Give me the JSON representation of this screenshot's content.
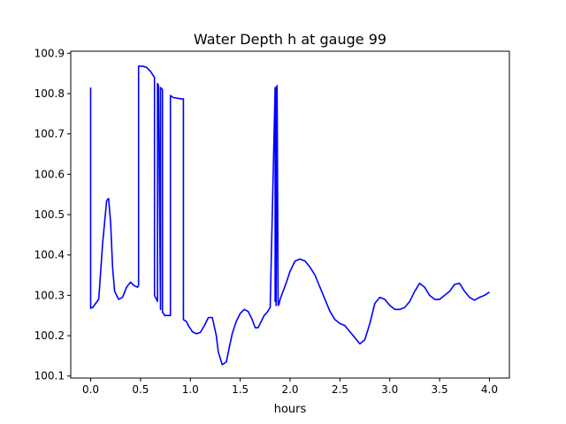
{
  "chart_data": {
    "type": "line",
    "title": "Water Depth h at gauge 99",
    "xlabel": "hours",
    "ylabel": "",
    "xlim": [
      -0.2,
      4.2
    ],
    "ylim": [
      100.095,
      100.905
    ],
    "xticks": [
      0.0,
      0.5,
      1.0,
      1.5,
      2.0,
      2.5,
      3.0,
      3.5,
      4.0
    ],
    "xtick_labels": [
      "0.0",
      "0.5",
      "1.0",
      "1.5",
      "2.0",
      "2.5",
      "3.0",
      "3.5",
      "4.0"
    ],
    "yticks": [
      100.1,
      100.2,
      100.3,
      100.4,
      100.5,
      100.6,
      100.7,
      100.8,
      100.9
    ],
    "ytick_labels": [
      "100.1",
      "100.2",
      "100.3",
      "100.4",
      "100.5",
      "100.6",
      "100.7",
      "100.8",
      "100.9"
    ],
    "grid": false,
    "legend": "none",
    "series": [
      {
        "color": "#0000ff",
        "x": [
          0.0,
          0.0,
          0.0,
          0.02,
          0.08,
          0.12,
          0.16,
          0.18,
          0.2,
          0.22,
          0.24,
          0.28,
          0.32,
          0.36,
          0.4,
          0.43,
          0.47,
          0.48,
          0.48,
          0.52,
          0.56,
          0.6,
          0.64,
          0.64,
          0.67,
          0.67,
          0.68,
          0.7,
          0.7,
          0.72,
          0.72,
          0.74,
          0.74,
          0.8,
          0.8,
          0.83,
          0.91,
          0.93,
          0.93,
          0.96,
          0.98,
          1.02,
          1.06,
          1.1,
          1.14,
          1.18,
          1.22,
          1.26,
          1.28,
          1.32,
          1.36,
          1.39,
          1.42,
          1.46,
          1.5,
          1.54,
          1.58,
          1.62,
          1.65,
          1.68,
          1.71,
          1.74,
          1.77,
          1.8,
          1.85,
          1.85,
          1.86,
          1.86,
          1.87,
          1.88,
          1.88,
          1.89,
          1.9,
          1.93,
          1.96,
          2.0,
          2.05,
          2.1,
          2.15,
          2.2,
          2.25,
          2.3,
          2.35,
          2.4,
          2.45,
          2.5,
          2.55,
          2.6,
          2.65,
          2.7,
          2.75,
          2.8,
          2.85,
          2.9,
          2.95,
          3.0,
          3.05,
          3.1,
          3.15,
          3.2,
          3.25,
          3.3,
          3.35,
          3.4,
          3.45,
          3.5,
          3.55,
          3.6,
          3.65,
          3.7,
          3.75,
          3.8,
          3.85,
          3.9,
          3.95,
          4.0
        ],
        "y": [
          100.815,
          100.268,
          100.268,
          100.27,
          100.29,
          100.43,
          100.535,
          100.54,
          100.48,
          100.37,
          100.31,
          100.29,
          100.295,
          100.32,
          100.333,
          100.325,
          100.32,
          100.325,
          100.868,
          100.868,
          100.865,
          100.855,
          100.84,
          100.3,
          100.285,
          100.825,
          100.82,
          100.265,
          100.815,
          100.81,
          100.258,
          100.252,
          100.25,
          100.25,
          100.795,
          100.79,
          100.787,
          100.787,
          100.24,
          100.235,
          100.225,
          100.21,
          100.205,
          100.208,
          100.225,
          100.245,
          100.245,
          100.2,
          100.16,
          100.128,
          100.135,
          100.17,
          100.205,
          100.235,
          100.255,
          100.265,
          100.26,
          100.24,
          100.22,
          100.22,
          100.235,
          100.25,
          100.258,
          100.27,
          100.815,
          100.285,
          100.815,
          100.275,
          100.82,
          100.275,
          100.275,
          100.278,
          100.29,
          100.31,
          100.33,
          100.36,
          100.385,
          100.39,
          100.385,
          100.37,
          100.35,
          100.32,
          100.29,
          100.26,
          100.24,
          100.23,
          100.225,
          100.21,
          100.195,
          100.18,
          100.19,
          100.23,
          100.28,
          100.295,
          100.29,
          100.275,
          100.265,
          100.265,
          100.27,
          100.285,
          100.31,
          100.33,
          100.32,
          100.3,
          100.29,
          100.29,
          100.3,
          100.31,
          100.327,
          100.33,
          100.31,
          100.295,
          100.288,
          100.295,
          100.3,
          100.308
        ]
      }
    ]
  }
}
